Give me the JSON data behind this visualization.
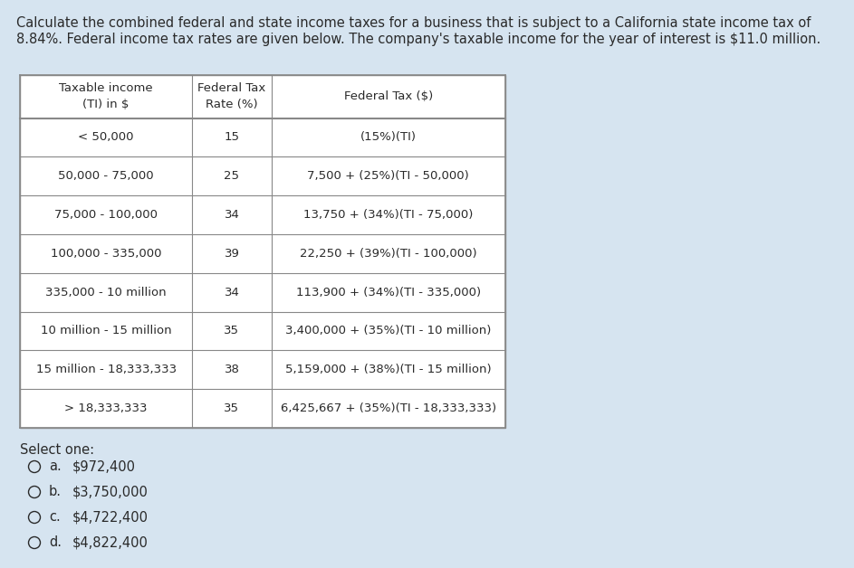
{
  "background_color": "#d6e4f0",
  "intro_line1": "Calculate the combined federal and state income taxes for a business that is subject to a California state income tax of",
  "intro_line2": "8.84%. Federal income tax rates are given below. The company's taxable income for the year of interest is $11.0 million.",
  "table": {
    "col_headers": [
      "Taxable income\n(TI) in $",
      "Federal Tax\nRate (%)",
      "Federal Tax ($)"
    ],
    "rows": [
      [
        "< 50,000",
        "15",
        "(15%)(TI)"
      ],
      [
        "50,000 - 75,000",
        "25",
        "7,500 + (25%)(TI - 50,000)"
      ],
      [
        "75,000 - 100,000",
        "34",
        "13,750 + (34%)(TI - 75,000)"
      ],
      [
        "100,000 - 335,000",
        "39",
        "22,250 + (39%)(TI - 100,000)"
      ],
      [
        "335,000 - 10 million",
        "34",
        "113,900 + (34%)(TI - 335,000)"
      ],
      [
        "10 million - 15 million",
        "35",
        "3,400,000 + (35%)(TI - 10 million)"
      ],
      [
        "15 million - 18,333,333",
        "38",
        "5,159,000 + (38%)(TI - 15 million)"
      ],
      [
        "> 18,333,333",
        "35",
        "6,425,667 + (35%)(TI - 18,333,333)"
      ]
    ],
    "col_aligns": [
      "center",
      "center",
      "center"
    ],
    "table_font_size": 9.5,
    "table_bg": "#ffffff",
    "border_color": "#888888"
  },
  "select_one": {
    "label": "Select one:",
    "options": [
      {
        "letter": "a.",
        "value": "$972,400"
      },
      {
        "letter": "b.",
        "value": "$3,750,000"
      },
      {
        "letter": "c.",
        "value": "$4,722,400"
      },
      {
        "letter": "d.",
        "value": "$4,822,400"
      }
    ]
  },
  "text_color": "#2a2a2a",
  "intro_fontsize": 10.5,
  "select_fontsize": 10.5
}
